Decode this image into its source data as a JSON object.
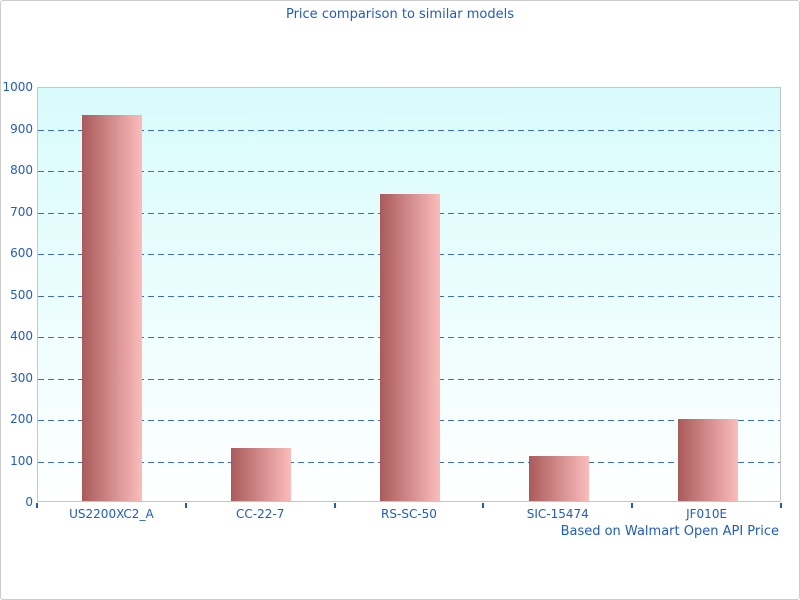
{
  "chart_data": {
    "type": "bar",
    "title": "Price comparison to similar models",
    "footnote": "Based on Walmart Open API Price",
    "categories": [
      "US2200XC2_A",
      "CC-22-7",
      "RS-SC-50",
      "SIC-15474",
      "JF010E"
    ],
    "values": [
      930,
      128,
      740,
      108,
      198
    ],
    "xlabel": "",
    "ylabel": "",
    "ylim": [
      0,
      1000
    ],
    "ytick_step": 100,
    "ytick_labels": [
      "0",
      "100",
      "200",
      "300",
      "400",
      "500",
      "600",
      "700",
      "800",
      "900",
      "1000"
    ],
    "grid": "horizontal-dashed",
    "legend_position": "none",
    "colors": {
      "text_blue": "#1e5ad2",
      "grid_blue": "#3c6cd2",
      "bar_gradient_dark": "#aa5a5a",
      "bar_gradient_light": "#fcbcbc",
      "plot_bg_top": "#d8fbfc",
      "plot_bg_bottom": "#feffff",
      "plot_border": "#c6c6c6"
    }
  }
}
